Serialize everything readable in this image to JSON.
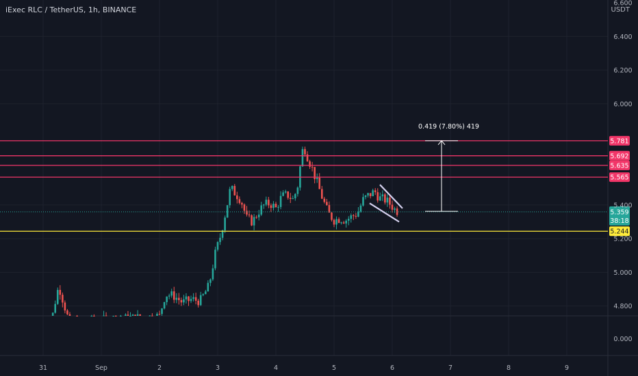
{
  "header": {
    "symbol_title": "iExec RLC / TetherUS, 1h, BINANCE",
    "currency": "USDT"
  },
  "colors": {
    "background": "#131722",
    "grid": "#1e222d",
    "up": "#26a69a",
    "down": "#ef5350",
    "level_line": "#f23669",
    "support_line": "#ffeb3b",
    "text": "#b2b5be",
    "pattern": "#d4d0ee"
  },
  "chart_data": {
    "type": "candlestick",
    "title": "iExec RLC / TetherUS, 1h, BINANCE",
    "xlabel": "",
    "ylabel": "USDT",
    "x_ticks": [
      "31",
      "Sep",
      "2",
      "3",
      "4",
      "5",
      "6",
      "7",
      "8",
      "9"
    ],
    "y_ticks_upper": [
      "6.600",
      "6.400",
      "6.200",
      "6.000",
      "5.400",
      "5.200",
      "5.000",
      "4.800"
    ],
    "y_tick_lower": "0.000",
    "ylim": [
      4.75,
      6.62
    ],
    "grid": true,
    "last_price": "5.359",
    "countdown": "38:18",
    "horizontal_levels": [
      {
        "value": 5.781,
        "label": "5.781",
        "kind": "resistance"
      },
      {
        "value": 5.692,
        "label": "5.692",
        "kind": "resistance"
      },
      {
        "value": 5.635,
        "label": "5.635",
        "kind": "resistance"
      },
      {
        "value": 5.565,
        "label": "5.565",
        "kind": "resistance"
      },
      {
        "value": 5.244,
        "label": "5.244",
        "kind": "support"
      }
    ],
    "measure": {
      "label": "0.419 (7.80%) 419",
      "from_value": 5.362,
      "to_value": 5.781
    },
    "pattern": "falling wedge",
    "price_path": [
      [
        0.0,
        4.7
      ],
      [
        0.15,
        4.72
      ],
      [
        0.22,
        4.85
      ],
      [
        0.27,
        4.92
      ],
      [
        0.32,
        4.86
      ],
      [
        0.45,
        4.7
      ],
      [
        1.2,
        4.72
      ],
      [
        2.0,
        4.74
      ],
      [
        2.1,
        4.87
      ],
      [
        2.25,
        4.86
      ],
      [
        2.4,
        4.82
      ],
      [
        2.55,
        4.84
      ],
      [
        2.7,
        4.83
      ],
      [
        2.85,
        4.92
      ],
      [
        2.95,
        5.1
      ],
      [
        3.05,
        5.22
      ],
      [
        3.15,
        5.38
      ],
      [
        3.22,
        5.5
      ],
      [
        3.3,
        5.47
      ],
      [
        3.4,
        5.43
      ],
      [
        3.5,
        5.32
      ],
      [
        3.6,
        5.3
      ],
      [
        3.7,
        5.36
      ],
      [
        3.8,
        5.4
      ],
      [
        3.9,
        5.41
      ],
      [
        4.0,
        5.38
      ],
      [
        4.1,
        5.45
      ],
      [
        4.2,
        5.46
      ],
      [
        4.3,
        5.43
      ],
      [
        4.38,
        5.52
      ],
      [
        4.45,
        5.72
      ],
      [
        4.5,
        5.73
      ],
      [
        4.55,
        5.68
      ],
      [
        4.62,
        5.62
      ],
      [
        4.7,
        5.54
      ],
      [
        4.8,
        5.44
      ],
      [
        4.9,
        5.35
      ],
      [
        5.0,
        5.31
      ],
      [
        5.1,
        5.32
      ],
      [
        5.2,
        5.31
      ],
      [
        5.3,
        5.33
      ],
      [
        5.4,
        5.35
      ],
      [
        5.5,
        5.43
      ],
      [
        5.6,
        5.46
      ],
      [
        5.7,
        5.48
      ],
      [
        5.78,
        5.44
      ],
      [
        5.88,
        5.43
      ],
      [
        5.98,
        5.4
      ],
      [
        6.05,
        5.37
      ],
      [
        6.12,
        5.36
      ]
    ]
  }
}
